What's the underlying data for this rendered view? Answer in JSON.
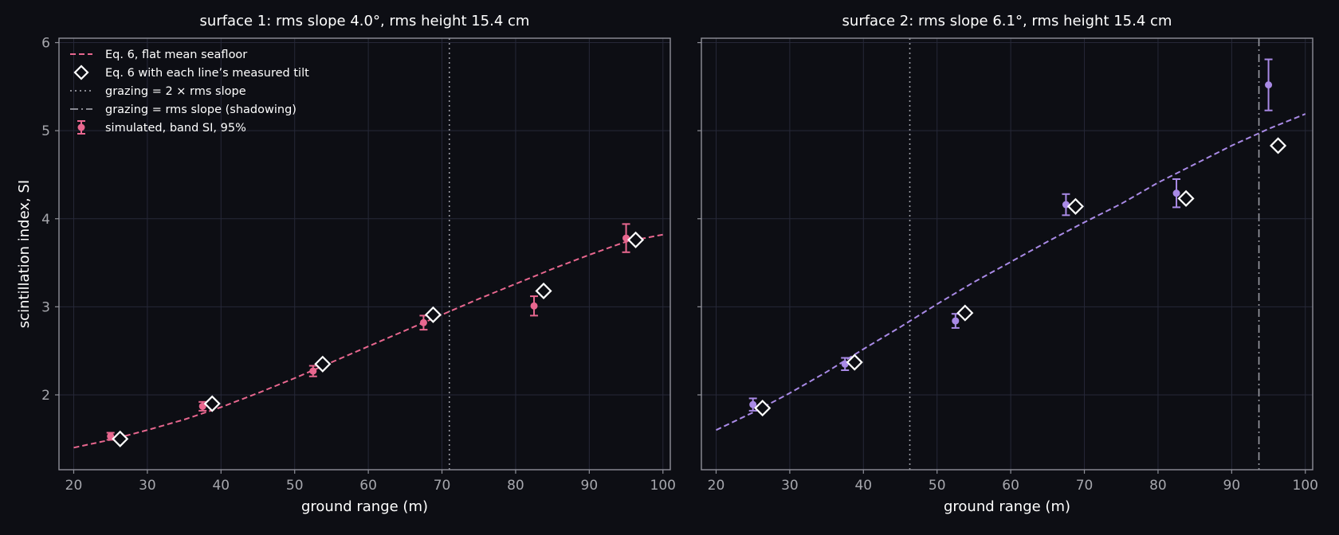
{
  "figure": {
    "ylabel": "scintillation index, SI",
    "xlabel": "ground range (m)"
  },
  "colors": {
    "background": "#0d0e14",
    "axes_frame": "#8f9099",
    "grid": "#262838",
    "text": "#ffffff",
    "tick_text": "#a6a7ad",
    "reference_line": "#9a9ba3",
    "surface1": "#e8678f",
    "surface2": "#a98ae6",
    "marker_edge": "#ffffff"
  },
  "legend": {
    "placement": "upper-left",
    "entries": [
      {
        "key": "model_flat",
        "label": "Eq. 6, flat mean seafloor"
      },
      {
        "key": "model_tilt",
        "label": "Eq. 6 with each line’s measured tilt"
      },
      {
        "key": "two_rms",
        "label": "grazing = 2 × rms slope"
      },
      {
        "key": "rms",
        "label": "grazing = rms slope (shadowing)"
      },
      {
        "key": "sim",
        "label": "simulated, band SI, 95%"
      }
    ]
  },
  "chart_data": [
    {
      "type": "line",
      "title": "surface 1: rms slope 4.0°, rms height 15.4 cm",
      "xlabel": "ground range (m)",
      "ylabel": "scintillation index, SI",
      "xlim": [
        18,
        101
      ],
      "ylim": [
        1.15,
        6.05
      ],
      "xticks": [
        20,
        30,
        40,
        50,
        60,
        70,
        80,
        90,
        100
      ],
      "yticks": [
        2,
        3,
        4,
        5,
        6
      ],
      "grid": true,
      "series": [
        {
          "name": "Eq. 6, flat mean seafloor",
          "style": "dashed",
          "x": [
            20,
            25,
            30,
            35,
            40,
            45,
            50,
            55,
            60,
            65,
            70,
            75,
            80,
            85,
            90,
            95,
            100
          ],
          "y": [
            1.4,
            1.49,
            1.6,
            1.72,
            1.86,
            2.02,
            2.19,
            2.37,
            2.55,
            2.73,
            2.91,
            3.09,
            3.26,
            3.43,
            3.59,
            3.74,
            3.82
          ]
        },
        {
          "name": "Eq. 6 with each line’s measured tilt",
          "style": "diamond-markers",
          "x": [
            26.3,
            38.8,
            53.8,
            68.8,
            83.8,
            96.3
          ],
          "y": [
            1.5,
            1.9,
            2.35,
            2.91,
            3.18,
            3.76
          ]
        },
        {
          "name": "simulated, band SI, 95%",
          "style": "points-errorbars",
          "x": [
            25.0,
            37.5,
            52.5,
            67.5,
            82.5,
            95.0
          ],
          "y": [
            1.53,
            1.87,
            2.27,
            2.82,
            3.01,
            3.78
          ],
          "err": [
            0.04,
            0.05,
            0.06,
            0.08,
            0.11,
            0.16
          ]
        }
      ],
      "vlines": [
        {
          "name": "grazing = 2 × rms slope",
          "x": 71.0,
          "style": "dotted"
        }
      ]
    },
    {
      "type": "line",
      "title": "surface 2: rms slope 6.1°, rms height 15.4 cm",
      "xlabel": "ground range (m)",
      "ylabel": "",
      "xlim": [
        18,
        101
      ],
      "ylim": [
        1.15,
        6.05
      ],
      "xticks": [
        20,
        30,
        40,
        50,
        60,
        70,
        80,
        90,
        100
      ],
      "yticks": [
        2,
        3,
        4,
        5,
        6
      ],
      "grid": true,
      "series": [
        {
          "name": "Eq. 6, flat mean seafloor",
          "style": "dashed",
          "x": [
            20,
            25,
            30,
            35,
            40,
            45,
            50,
            55,
            60,
            65,
            70,
            75,
            80,
            85,
            90,
            95,
            100
          ],
          "y": [
            1.6,
            1.8,
            2.02,
            2.26,
            2.52,
            2.77,
            3.03,
            3.28,
            3.51,
            3.74,
            3.96,
            4.17,
            4.41,
            4.62,
            4.83,
            5.02,
            5.19
          ]
        },
        {
          "name": "Eq. 6 with each line’s measured tilt",
          "style": "diamond-markers",
          "x": [
            26.3,
            38.8,
            53.8,
            68.8,
            83.8,
            96.3
          ],
          "y": [
            1.85,
            2.37,
            2.93,
            4.14,
            4.23,
            4.83
          ]
        },
        {
          "name": "simulated, band SI, 95%",
          "style": "points-errorbars",
          "x": [
            25.0,
            37.5,
            52.5,
            67.5,
            82.5,
            95.0
          ],
          "y": [
            1.89,
            2.35,
            2.84,
            4.16,
            4.29,
            5.52
          ],
          "err": [
            0.07,
            0.07,
            0.08,
            0.12,
            0.16,
            0.29
          ]
        }
      ],
      "vlines": [
        {
          "name": "grazing = 2 × rms slope",
          "x": 46.3,
          "style": "dotted"
        },
        {
          "name": "grazing = rms slope (shadowing)",
          "x": 93.7,
          "style": "dashdot"
        }
      ]
    }
  ]
}
